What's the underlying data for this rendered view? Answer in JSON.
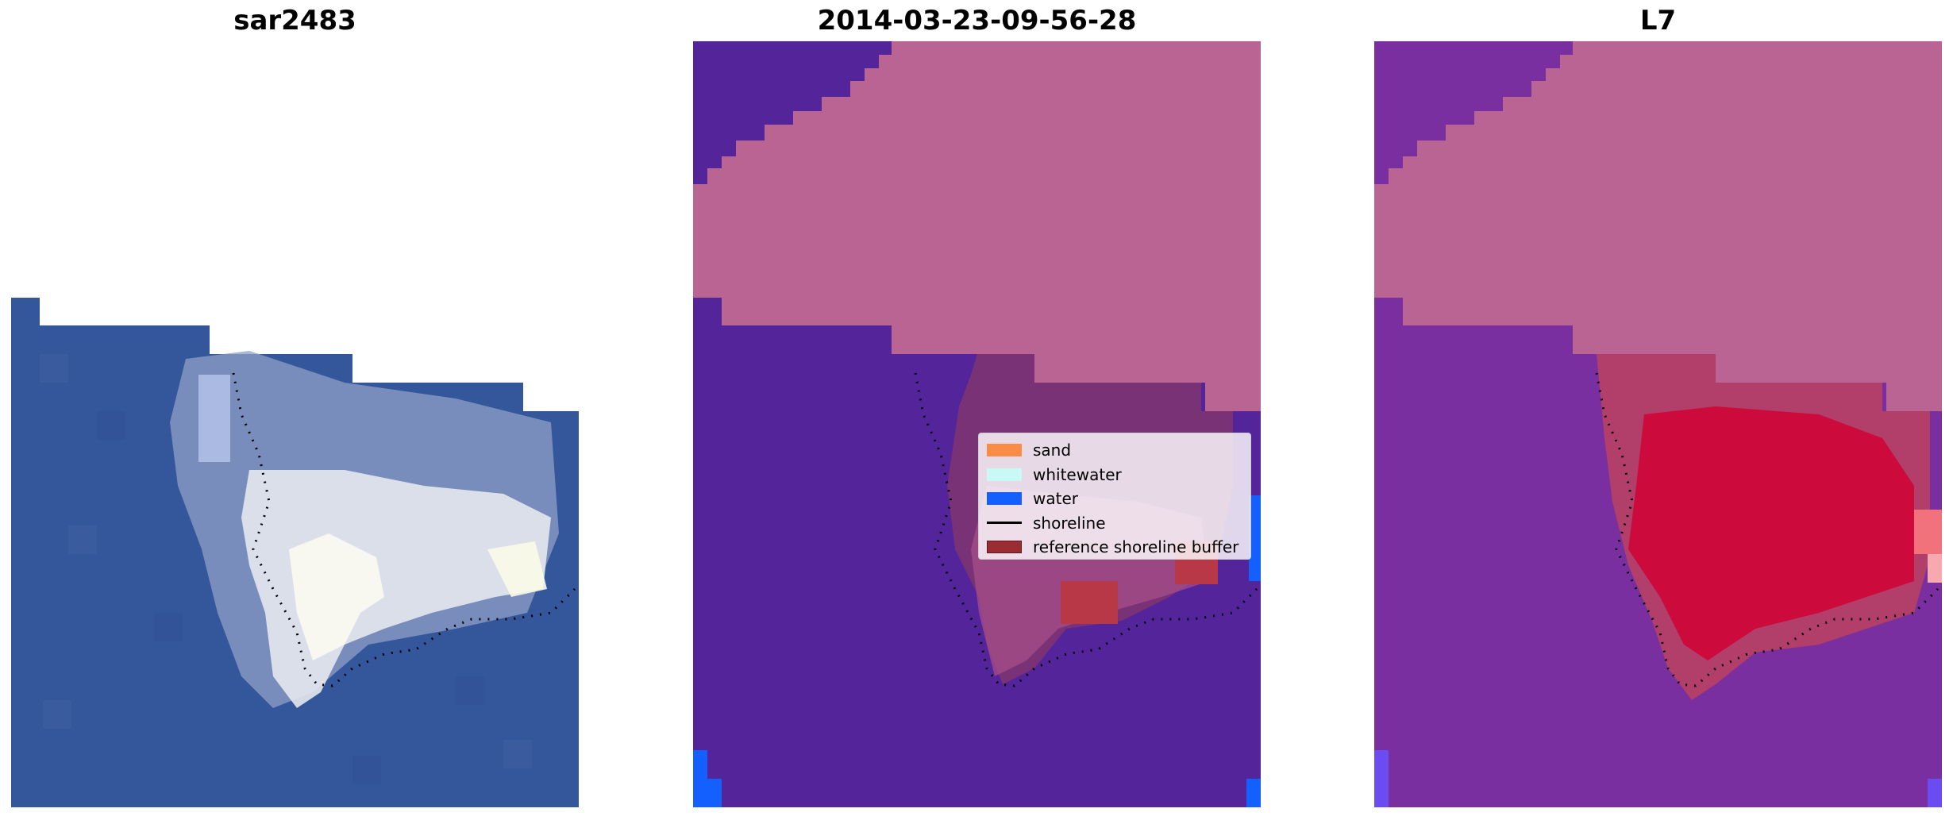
{
  "panels": [
    {
      "title": "sar2483"
    },
    {
      "title": "2014-03-23-09-56-28"
    },
    {
      "title": "L7"
    }
  ],
  "legend": {
    "items": [
      {
        "label": "sand",
        "color": "#f98d47"
      },
      {
        "label": "whitewater",
        "color": "#c9f9f7"
      },
      {
        "label": "water",
        "color": "#1460fe"
      },
      {
        "label": "shoreline",
        "color": "#000000"
      },
      {
        "label": "reference shoreline buffer",
        "color": "#9b2c33"
      }
    ]
  },
  "colors": {
    "rgb_water": "#34569b",
    "rgb_cloud": "#e6e8ee",
    "class_water": "#53249a",
    "class_land": "#ba6494",
    "class_water_blue": "#1460fe",
    "buffer": "#b83848",
    "index_water": "#7a2fa0",
    "index_land": "#ba6494",
    "index_sand": "#cc0a3c"
  }
}
